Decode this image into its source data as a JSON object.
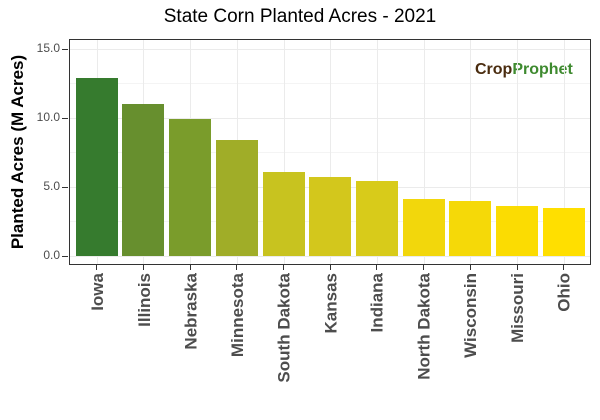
{
  "chart_data": {
    "type": "bar",
    "title": "State Corn Planted Acres - 2021",
    "xlabel": "",
    "ylabel": "Planted Acres (M Acres)",
    "categories": [
      "Iowa",
      "Illinois",
      "Nebraska",
      "Minnesota",
      "South Dakota",
      "Kansas",
      "Indiana",
      "North Dakota",
      "Wisconsin",
      "Missouri",
      "Ohio"
    ],
    "values": [
      12.9,
      11.0,
      9.9,
      8.4,
      6.1,
      5.7,
      5.4,
      4.1,
      4.0,
      3.6,
      3.5
    ],
    "colors": [
      "#367b2e",
      "#678f2e",
      "#7a9c2b",
      "#a0ad28",
      "#c8c31f",
      "#d3c71c",
      "#d8cb1a",
      "#f2d70c",
      "#f5d908",
      "#fbdc02",
      "#ffdf00"
    ],
    "ylim": [
      0,
      15.5
    ],
    "yticks": [
      "0.0",
      "5.0",
      "10.0",
      "15.0"
    ],
    "grid": true,
    "legend": null,
    "watermark": {
      "part1": "Crop",
      "part2": "Prophet"
    }
  }
}
